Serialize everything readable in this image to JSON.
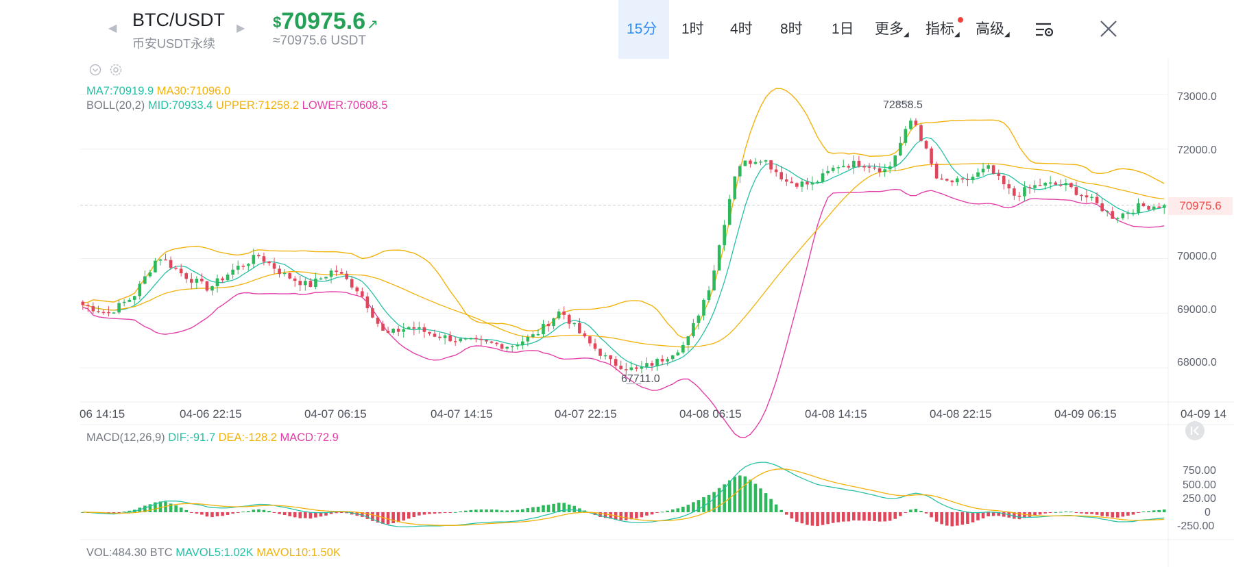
{
  "header": {
    "symbol": "BTC/USDT",
    "market": "币安USDT永续",
    "currency_symbol": "$",
    "last_price": "70975.6",
    "approx_price": "≈70975.6 USDT",
    "price_color": "#24a156",
    "timeframes": [
      {
        "label": "15分",
        "selected": true
      },
      {
        "label": "1时",
        "selected": false
      },
      {
        "label": "4时",
        "selected": false
      },
      {
        "label": "8时",
        "selected": false
      },
      {
        "label": "1日",
        "selected": false
      }
    ],
    "more_label": "更多",
    "indicators_label": "指标",
    "advanced_label": "高级",
    "icons": [
      "prev-arrow-icon",
      "next-arrow-icon",
      "price-up-arrow-icon",
      "chart-settings-icon",
      "close-icon",
      "collapse-icon",
      "gear-icon"
    ]
  },
  "main_chart": {
    "ma_legend": {
      "ma7": "MA7:70919.9",
      "ma30": "MA30:71096.0"
    },
    "boll_legend": {
      "name": "BOLL(20,2)",
      "mid": "MID:70933.4",
      "upper": "UPPER:71258.2",
      "lower": "LOWER:70608.5"
    },
    "high_marker": "72858.5",
    "low_marker": "67711.0",
    "current_price_tag": "70975.6",
    "y_ticks": [
      "73000.0",
      "72000.0",
      "70000.0",
      "69000.0",
      "68000.0"
    ],
    "x_ticks": [
      "06 14:15",
      "04-06 22:15",
      "04-07 06:15",
      "04-07 14:15",
      "04-07 22:15",
      "04-08 06:15",
      "04-08 14:15",
      "04-08 22:15",
      "04-09 06:15",
      "04-09 14"
    ]
  },
  "macd_panel": {
    "legend": {
      "name": "MACD(12,26,9)",
      "dif": "DIF:-91.7",
      "dea": "DEA:-128.2",
      "macd": "MACD:72.9"
    },
    "y_ticks": [
      "750.00",
      "500.00",
      "250.00",
      "0",
      "-250.00"
    ]
  },
  "vol_panel": {
    "legend": {
      "name": "VOL:484.30 BTC",
      "mavol5": "MAVOL5:1.02K",
      "mavol10": "MAVOL10:1.50K"
    }
  },
  "chart_data": {
    "type": "candlestick",
    "y_range": [
      67400,
      73100
    ],
    "last_price": 70975.6,
    "period": "15分",
    "high": 72858.5,
    "low": 67711.0,
    "close_anchors": [
      69150,
      69000,
      69300,
      70050,
      69700,
      69450,
      69800,
      70050,
      69700,
      69500,
      69800,
      69400,
      68600,
      68750,
      68600,
      68500,
      68450,
      68400,
      68600,
      69050,
      68500,
      68100,
      67950,
      68150,
      68450,
      69600,
      71700,
      71850,
      71400,
      71350,
      71700,
      71750,
      71600,
      72600,
      71400,
      71400,
      71650,
      71150,
      71350,
      71350,
      71100,
      70750,
      70950,
      70975.6
    ],
    "macd_range": [
      -400,
      1000
    ],
    "colors": {
      "up": "#2eb85c",
      "down": "#e0465a",
      "ma7": "#25c0a5",
      "ma30": "#f2b20c",
      "boll_upper": "#f2b20c",
      "boll_lower": "#e23fa8",
      "boll_mid": "#25c0a5",
      "dif": "#25c0a5",
      "dea": "#f2b20c"
    }
  }
}
